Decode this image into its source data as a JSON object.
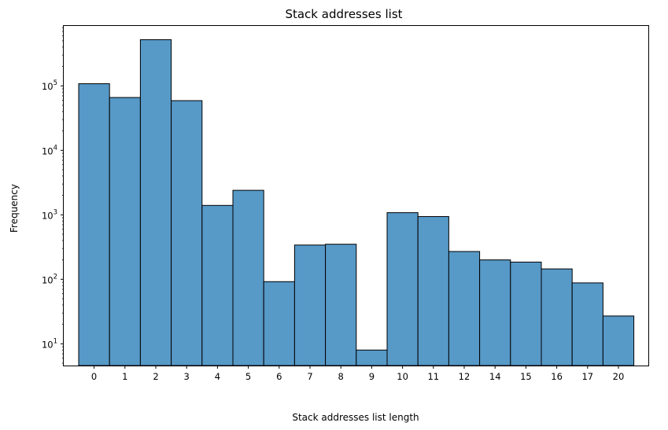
{
  "chart_data": {
    "type": "bar",
    "scale": "log",
    "title": "Stack addresses list",
    "xlabel": "Stack addresses list length",
    "ylabel": "Frequency",
    "categories": [
      "0",
      "1",
      "2",
      "3",
      "4",
      "5",
      "6",
      "7",
      "8",
      "9",
      "10",
      "11",
      "12",
      "14",
      "15",
      "16",
      "17",
      "20"
    ],
    "values": [
      108000,
      66000,
      520000,
      59000,
      1400,
      2400,
      92,
      340,
      350,
      8,
      1080,
      940,
      270,
      200,
      185,
      145,
      88,
      27
    ],
    "ylim": [
      4.6,
      850000
    ],
    "yticks": [
      {
        "value": 10,
        "base": "10",
        "exp": "1"
      },
      {
        "value": 100,
        "base": "10",
        "exp": "2"
      },
      {
        "value": 1000,
        "base": "10",
        "exp": "3"
      },
      {
        "value": 10000,
        "base": "10",
        "exp": "4"
      },
      {
        "value": 100000,
        "base": "10",
        "exp": "5"
      }
    ],
    "bar_color": "#5799c7",
    "edge_color": "#000000"
  }
}
